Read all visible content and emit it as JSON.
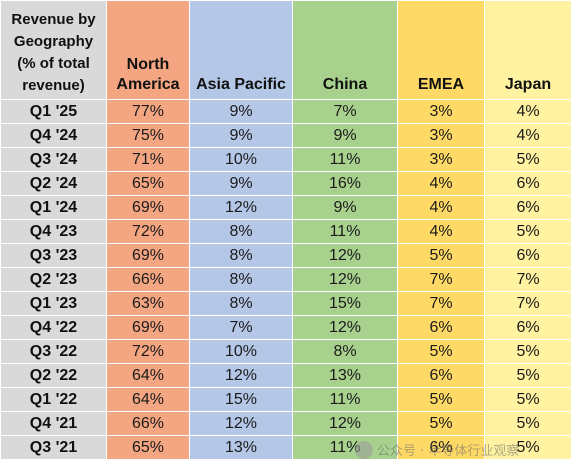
{
  "chart_data": {
    "type": "table",
    "header": {
      "row_label": [
        "Revenue by",
        "Geography",
        "(% of total",
        "revenue)"
      ],
      "columns": [
        [
          "North",
          "America"
        ],
        [
          "Asia Pacific"
        ],
        [
          "China"
        ],
        [
          "EMEA"
        ],
        [
          "Japan"
        ]
      ]
    },
    "colors": {
      "label": "#d9d9d9",
      "north_america": "#f4a582",
      "asia_pacific": "#b4c7e7",
      "china": "#a9d18e",
      "emea": "#ffd966",
      "japan": "#fff2a0"
    },
    "rows": [
      {
        "quarter": "Q1 '25",
        "na": "77%",
        "ap": "9%",
        "cn": "7%",
        "em": "3%",
        "jp": "4%"
      },
      {
        "quarter": "Q4 '24",
        "na": "75%",
        "ap": "9%",
        "cn": "9%",
        "em": "3%",
        "jp": "4%"
      },
      {
        "quarter": "Q3 '24",
        "na": "71%",
        "ap": "10%",
        "cn": "11%",
        "em": "3%",
        "jp": "5%"
      },
      {
        "quarter": "Q2 '24",
        "na": "65%",
        "ap": "9%",
        "cn": "16%",
        "em": "4%",
        "jp": "6%"
      },
      {
        "quarter": "Q1 '24",
        "na": "69%",
        "ap": "12%",
        "cn": "9%",
        "em": "4%",
        "jp": "6%"
      },
      {
        "quarter": "Q4 '23",
        "na": "72%",
        "ap": "8%",
        "cn": "11%",
        "em": "4%",
        "jp": "5%"
      },
      {
        "quarter": "Q3 '23",
        "na": "69%",
        "ap": "8%",
        "cn": "12%",
        "em": "5%",
        "jp": "6%"
      },
      {
        "quarter": "Q2 '23",
        "na": "66%",
        "ap": "8%",
        "cn": "12%",
        "em": "7%",
        "jp": "7%"
      },
      {
        "quarter": "Q1 '23",
        "na": "63%",
        "ap": "8%",
        "cn": "15%",
        "em": "7%",
        "jp": "7%"
      },
      {
        "quarter": "Q4 '22",
        "na": "69%",
        "ap": "7%",
        "cn": "12%",
        "em": "6%",
        "jp": "6%"
      },
      {
        "quarter": "Q3 '22",
        "na": "72%",
        "ap": "10%",
        "cn": "8%",
        "em": "5%",
        "jp": "5%"
      },
      {
        "quarter": "Q2 '22",
        "na": "64%",
        "ap": "12%",
        "cn": "13%",
        "em": "6%",
        "jp": "5%"
      },
      {
        "quarter": "Q1 '22",
        "na": "64%",
        "ap": "15%",
        "cn": "11%",
        "em": "5%",
        "jp": "5%"
      },
      {
        "quarter": "Q4 '21",
        "na": "66%",
        "ap": "12%",
        "cn": "12%",
        "em": "5%",
        "jp": "5%"
      },
      {
        "quarter": "Q3 '21",
        "na": "65%",
        "ap": "13%",
        "cn": "11%",
        "em": "6%",
        "jp": "5%"
      }
    ]
  },
  "watermark": {
    "text": "公众号 · 半导体行业观察",
    "icon": "wechat-icon"
  }
}
